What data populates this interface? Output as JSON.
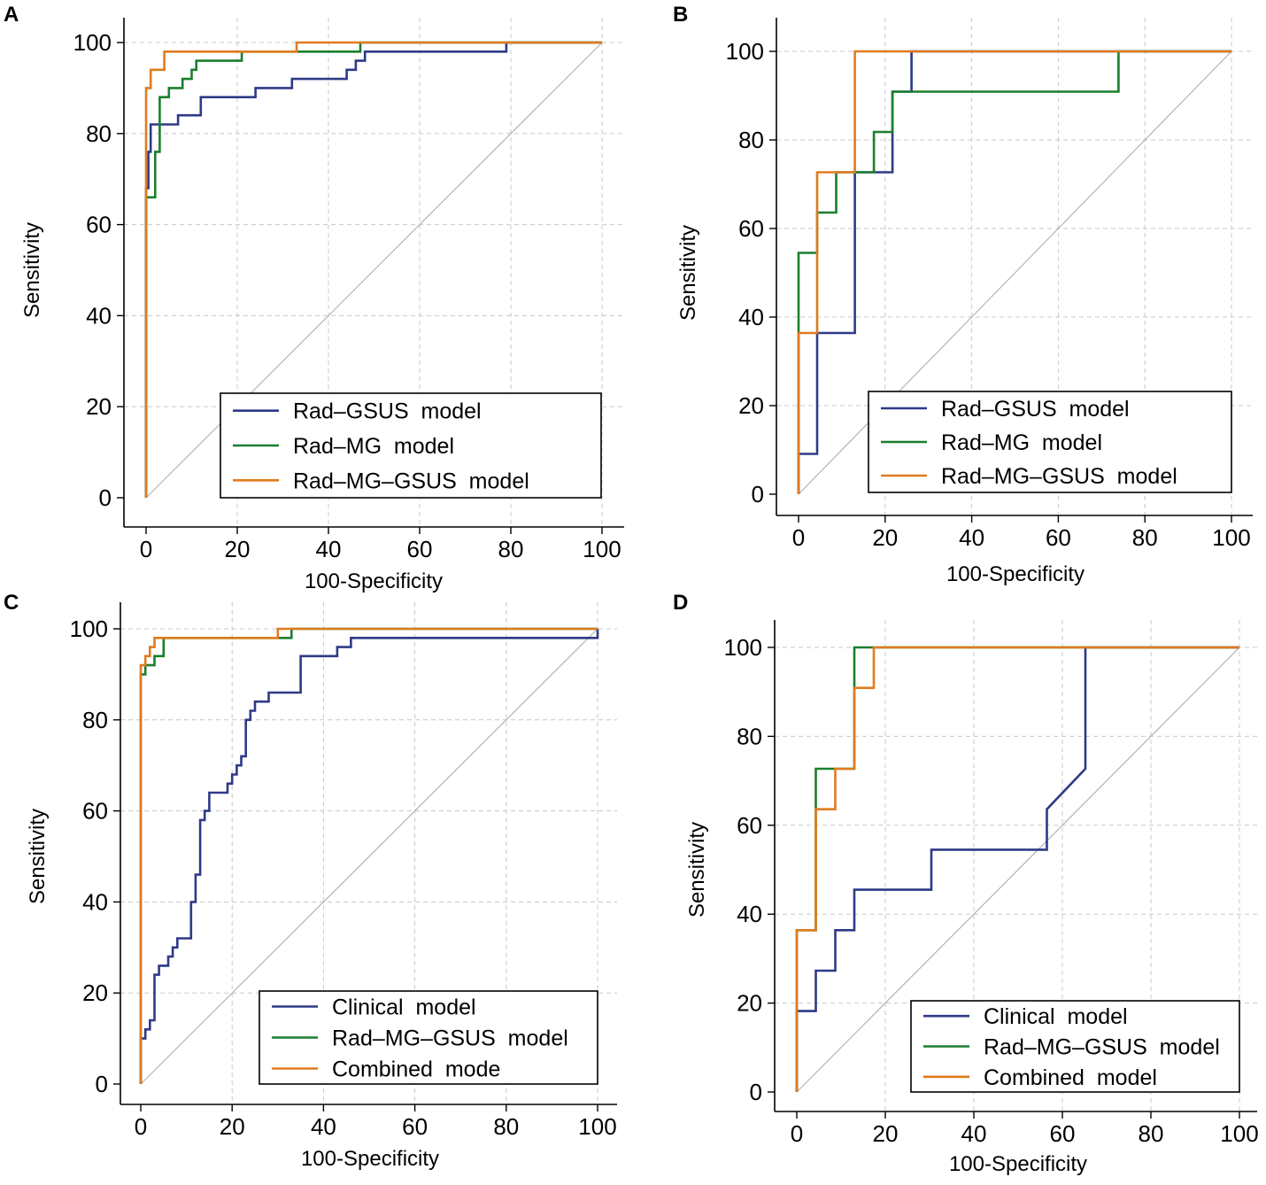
{
  "figure": {
    "background": "#ffffff"
  },
  "colors": {
    "blue": "#2e3a87",
    "green": "#1a7f2e",
    "orange": "#e07b1f",
    "axis": "#000000",
    "grid": "#c8c8c8",
    "diagonal": "#b4b4b4"
  },
  "chart_data": [
    {
      "panel": "A",
      "type": "line",
      "title": "",
      "xlabel": "100-Specificity",
      "ylabel": "Sensitivity",
      "xlim": [
        0,
        100
      ],
      "ylim": [
        0,
        100
      ],
      "xticks": [
        0,
        20,
        40,
        60,
        80,
        100
      ],
      "yticks": [
        0,
        20,
        40,
        60,
        80,
        100
      ],
      "grid": true,
      "reference_line": "diagonal",
      "legend_position": "bottom-right",
      "series": [
        {
          "name": "Rad–GSUS  model",
          "color": "#2e3a87",
          "x": [
            0,
            0,
            0,
            0.5,
            0.5,
            1,
            1,
            2,
            2,
            7,
            7,
            12,
            12,
            20,
            20,
            24,
            24,
            32,
            32,
            40,
            40,
            44,
            44,
            46,
            46,
            48,
            48,
            79,
            79,
            100
          ],
          "y": [
            0,
            62,
            68,
            68,
            76,
            76,
            82,
            82,
            82,
            82,
            84,
            84,
            88,
            88,
            88,
            88,
            90,
            90,
            92,
            92,
            92,
            92,
            94,
            94,
            96,
            96,
            98,
            98,
            100,
            100
          ]
        },
        {
          "name": "Rad–MG  model",
          "color": "#1a7f2e",
          "x": [
            0,
            0,
            0.5,
            0.5,
            2,
            2,
            3,
            3,
            5,
            5,
            8,
            8,
            9,
            9,
            10,
            10,
            11,
            11,
            21,
            21,
            47,
            47,
            100
          ],
          "y": [
            0,
            66,
            66,
            66,
            66,
            76,
            76,
            88,
            88,
            90,
            90,
            92,
            92,
            92,
            92,
            94,
            94,
            96,
            96,
            98,
            98,
            100,
            100
          ]
        },
        {
          "name": "Rad–MG–GSUS  model",
          "color": "#e07b1f",
          "x": [
            0,
            0,
            1,
            1,
            2,
            2,
            4,
            4,
            33,
            33,
            100
          ],
          "y": [
            0,
            90,
            90,
            94,
            94,
            94,
            94,
            98,
            98,
            100,
            100
          ]
        }
      ]
    },
    {
      "panel": "B",
      "type": "line",
      "title": "",
      "xlabel": "100-Specificity",
      "ylabel": "Sensitivity",
      "xlim": [
        0,
        100
      ],
      "ylim": [
        0,
        100
      ],
      "xticks": [
        0,
        20,
        40,
        60,
        80,
        100
      ],
      "yticks": [
        0,
        20,
        40,
        60,
        80,
        100
      ],
      "grid": true,
      "reference_line": "diagonal",
      "legend_position": "bottom-right",
      "series": [
        {
          "name": "Rad–GSUS  model",
          "color": "#2e3a87",
          "x": [
            0,
            0,
            4.3,
            4.3,
            13,
            13,
            21.7,
            21.7,
            26.1,
            26.1,
            100
          ],
          "y": [
            0,
            9.1,
            9.1,
            36.4,
            36.4,
            72.7,
            72.7,
            90.9,
            90.9,
            100,
            100
          ]
        },
        {
          "name": "Rad–MG  model",
          "color": "#1a7f2e",
          "x": [
            0,
            0,
            4.3,
            4.3,
            8.7,
            8.7,
            17.4,
            17.4,
            21.7,
            21.7,
            73.9,
            73.9,
            100
          ],
          "y": [
            0,
            54.5,
            54.5,
            63.6,
            63.6,
            72.7,
            72.7,
            81.8,
            81.8,
            90.9,
            90.9,
            100,
            100
          ]
        },
        {
          "name": "Rad–MG–GSUS  model",
          "color": "#e07b1f",
          "x": [
            0,
            0,
            4.3,
            4.3,
            13,
            13,
            100
          ],
          "y": [
            0,
            36.4,
            36.4,
            72.7,
            72.7,
            100,
            100
          ]
        }
      ]
    },
    {
      "panel": "C",
      "type": "line",
      "title": "",
      "xlabel": "100-Specificity",
      "ylabel": "Sensitivity",
      "xlim": [
        0,
        100
      ],
      "ylim": [
        0,
        100
      ],
      "xticks": [
        0,
        20,
        40,
        60,
        80,
        100
      ],
      "yticks": [
        0,
        20,
        40,
        60,
        80,
        100
      ],
      "grid": true,
      "reference_line": "diagonal",
      "legend_position": "bottom-right",
      "series": [
        {
          "name": "Clinical  model",
          "color": "#2e3a87",
          "x": [
            0,
            0,
            1,
            1,
            2,
            2,
            3,
            3,
            4,
            4,
            6,
            6,
            7,
            7,
            8,
            8,
            11,
            11,
            12,
            12,
            13,
            13,
            14,
            14,
            15,
            15,
            16,
            16,
            19,
            19,
            20,
            20,
            21,
            21,
            22,
            22,
            23,
            23,
            24,
            24,
            25,
            25,
            28,
            28,
            35,
            35,
            38,
            38,
            43,
            43,
            46,
            46,
            100,
            100
          ],
          "y": [
            0,
            10,
            10,
            12,
            12,
            14,
            14,
            24,
            24,
            26,
            26,
            28,
            28,
            30,
            30,
            32,
            32,
            40,
            40,
            46,
            46,
            58,
            58,
            60,
            60,
            64,
            64,
            64,
            64,
            66,
            66,
            68,
            68,
            70,
            70,
            72,
            72,
            80,
            80,
            82,
            82,
            84,
            84,
            86,
            86,
            94,
            94,
            94,
            94,
            96,
            96,
            98,
            98,
            100
          ]
        },
        {
          "name": "Rad–MG–GSUS  model",
          "color": "#1a7f2e",
          "x": [
            0,
            0,
            1,
            1,
            3,
            3,
            5,
            5,
            33,
            33,
            100
          ],
          "y": [
            0,
            90,
            90,
            92,
            92,
            94,
            94,
            98,
            98,
            100,
            100
          ]
        },
        {
          "name": "Combined  mode",
          "color": "#e07b1f",
          "x": [
            0,
            0,
            1,
            1,
            2,
            2,
            3,
            3,
            30,
            30,
            100
          ],
          "y": [
            0,
            92,
            92,
            94,
            94,
            96,
            96,
            98,
            98,
            100,
            100
          ]
        }
      ]
    },
    {
      "panel": "D",
      "type": "line",
      "title": "",
      "xlabel": "100-Specificity",
      "ylabel": "Sensitivity",
      "xlim": [
        0,
        100
      ],
      "ylim": [
        0,
        100
      ],
      "xticks": [
        0,
        20,
        40,
        60,
        80,
        100
      ],
      "yticks": [
        0,
        20,
        40,
        60,
        80,
        100
      ],
      "grid": true,
      "reference_line": "diagonal",
      "legend_position": "bottom-right",
      "series": [
        {
          "name": "Clinical  model",
          "color": "#2e3a87",
          "x": [
            0,
            0,
            4.3,
            4.3,
            8.7,
            8.7,
            13,
            13,
            17.4,
            17.4,
            30.4,
            30.4,
            56.5,
            56.5,
            65.2,
            65.2,
            100
          ],
          "y": [
            0,
            18.2,
            18.2,
            27.3,
            27.3,
            36.4,
            36.4,
            45.5,
            45.5,
            45.5,
            45.5,
            54.5,
            54.5,
            63.6,
            72.7,
            100,
            100
          ]
        },
        {
          "name": "Rad–MG–GSUS  model",
          "color": "#1a7f2e",
          "x": [
            0,
            0,
            4.3,
            4.3,
            13,
            13,
            100
          ],
          "y": [
            0,
            36.4,
            36.4,
            72.7,
            72.7,
            100,
            100
          ]
        },
        {
          "name": "Combined  model",
          "color": "#e07b1f",
          "x": [
            0,
            0,
            4.3,
            4.3,
            8.7,
            8.7,
            13,
            13,
            17.4,
            17.4,
            100
          ],
          "y": [
            0,
            36.4,
            36.4,
            63.6,
            63.6,
            72.7,
            72.7,
            90.9,
            90.9,
            100,
            100
          ]
        }
      ]
    }
  ]
}
